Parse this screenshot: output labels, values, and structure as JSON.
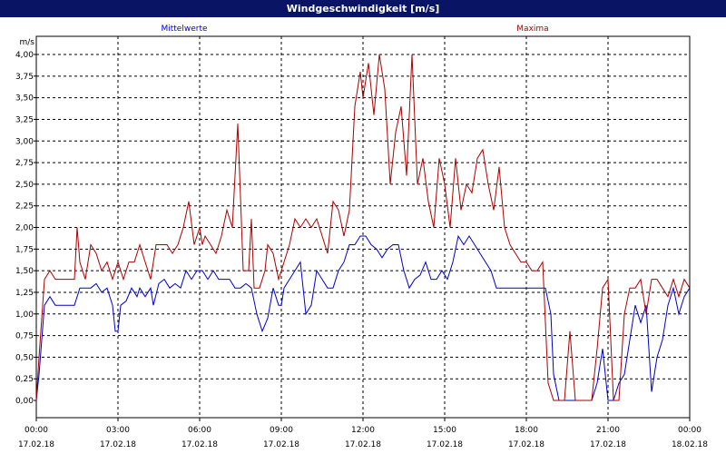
{
  "window": {
    "title": "Windgeschwindigkeit [m/s]"
  },
  "chart_data": {
    "type": "line",
    "title": "Windgeschwindigkeit [m/s]",
    "ylabel": "m/s",
    "xlabel": "",
    "ylim": [
      0,
      4
    ],
    "xlim": [
      0,
      24
    ],
    "grid": true,
    "legend_placement": "top",
    "x_ticks": [
      {
        "time": "00:00",
        "date": "17.02.18"
      },
      {
        "time": "03:00",
        "date": "17.02.18"
      },
      {
        "time": "06:00",
        "date": "17.02.18"
      },
      {
        "time": "09:00",
        "date": "17.02.18"
      },
      {
        "time": "12:00",
        "date": "17.02.18"
      },
      {
        "time": "15:00",
        "date": "17.02.18"
      },
      {
        "time": "18:00",
        "date": "17.02.18"
      },
      {
        "time": "21:00",
        "date": "17.02.18"
      },
      {
        "time": "00:00",
        "date": "18.02.18"
      }
    ],
    "y_ticks": [
      "0,00",
      "0,25",
      "0,50",
      "0,75",
      "1,00",
      "1,25",
      "1,50",
      "1,75",
      "2,00",
      "2,25",
      "2,50",
      "2,75",
      "3,00",
      "3,25",
      "3,50",
      "3,75",
      "4,00"
    ],
    "series": [
      {
        "name": "Mittelwerte",
        "color": "#0000cc",
        "x": [
          0.0,
          0.1,
          0.3,
          0.5,
          0.7,
          1.0,
          1.2,
          1.4,
          1.6,
          1.8,
          2.0,
          2.2,
          2.4,
          2.6,
          2.8,
          2.9,
          3.0,
          3.1,
          3.3,
          3.5,
          3.7,
          3.8,
          4.0,
          4.2,
          4.3,
          4.5,
          4.7,
          4.9,
          5.1,
          5.3,
          5.5,
          5.7,
          5.9,
          6.1,
          6.3,
          6.5,
          6.7,
          6.9,
          7.1,
          7.3,
          7.5,
          7.7,
          7.9,
          8.1,
          8.3,
          8.5,
          8.7,
          8.8,
          8.9,
          9.0,
          9.1,
          9.3,
          9.5,
          9.7,
          9.9,
          10.1,
          10.3,
          10.5,
          10.7,
          10.9,
          11.1,
          11.3,
          11.5,
          11.7,
          11.9,
          12.1,
          12.3,
          12.5,
          12.7,
          12.9,
          13.1,
          13.3,
          13.5,
          13.7,
          13.9,
          14.1,
          14.3,
          14.5,
          14.7,
          14.9,
          15.1,
          15.3,
          15.5,
          15.7,
          15.9,
          16.1,
          16.3,
          16.5,
          16.7,
          16.9,
          17.1,
          17.3,
          17.5,
          17.7,
          17.9,
          18.1,
          18.3,
          18.5,
          18.7,
          18.9,
          19.0,
          19.2,
          19.4,
          19.6,
          19.8,
          20.0,
          20.2,
          20.4,
          20.6,
          20.8,
          21.0,
          21.2,
          21.4,
          21.6,
          21.8,
          22.0,
          22.2,
          22.4,
          22.6,
          22.8,
          23.0,
          23.2,
          23.4,
          23.6,
          23.8,
          24.0
        ],
        "values": [
          0.0,
          0.3,
          1.1,
          1.2,
          1.1,
          1.1,
          1.1,
          1.1,
          1.3,
          1.3,
          1.3,
          1.35,
          1.25,
          1.3,
          1.1,
          0.8,
          0.8,
          1.1,
          1.15,
          1.3,
          1.2,
          1.3,
          1.2,
          1.3,
          1.1,
          1.35,
          1.4,
          1.3,
          1.35,
          1.3,
          1.5,
          1.4,
          1.5,
          1.5,
          1.4,
          1.5,
          1.4,
          1.4,
          1.4,
          1.3,
          1.3,
          1.35,
          1.3,
          1.0,
          0.8,
          0.95,
          1.3,
          1.2,
          1.1,
          1.1,
          1.3,
          1.4,
          1.5,
          1.6,
          1.0,
          1.1,
          1.5,
          1.4,
          1.3,
          1.3,
          1.5,
          1.6,
          1.8,
          1.8,
          1.9,
          1.9,
          1.8,
          1.75,
          1.65,
          1.75,
          1.8,
          1.8,
          1.5,
          1.3,
          1.4,
          1.45,
          1.6,
          1.4,
          1.4,
          1.5,
          1.4,
          1.6,
          1.9,
          1.8,
          1.9,
          1.8,
          1.7,
          1.6,
          1.5,
          1.3,
          1.3,
          1.3,
          1.3,
          1.3,
          1.3,
          1.3,
          1.3,
          1.3,
          1.3,
          1.0,
          0.3,
          0.0,
          0.0,
          0.0,
          0.0,
          0.0,
          0.0,
          0.0,
          0.2,
          0.6,
          0.0,
          0.0,
          0.2,
          0.3,
          0.7,
          1.1,
          0.9,
          1.1,
          0.1,
          0.5,
          0.7,
          1.1,
          1.3,
          1.0,
          1.2,
          1.3
        ]
      },
      {
        "name": "Maxima",
        "color": "#aa0000",
        "x": [
          0.0,
          0.1,
          0.3,
          0.5,
          0.7,
          1.0,
          1.2,
          1.4,
          1.5,
          1.6,
          1.8,
          2.0,
          2.2,
          2.4,
          2.6,
          2.8,
          3.0,
          3.2,
          3.4,
          3.6,
          3.8,
          4.0,
          4.2,
          4.4,
          4.6,
          4.8,
          5.0,
          5.2,
          5.4,
          5.6,
          5.8,
          6.0,
          6.1,
          6.2,
          6.4,
          6.6,
          6.8,
          7.0,
          7.2,
          7.4,
          7.6,
          7.8,
          7.9,
          8.0,
          8.2,
          8.4,
          8.5,
          8.7,
          8.9,
          9.1,
          9.3,
          9.5,
          9.7,
          9.9,
          10.1,
          10.3,
          10.5,
          10.7,
          10.9,
          11.1,
          11.3,
          11.5,
          11.7,
          11.9,
          12.0,
          12.2,
          12.4,
          12.6,
          12.8,
          13.0,
          13.2,
          13.4,
          13.6,
          13.8,
          14.0,
          14.2,
          14.4,
          14.6,
          14.8,
          15.0,
          15.2,
          15.4,
          15.6,
          15.8,
          16.0,
          16.2,
          16.4,
          16.6,
          16.8,
          17.0,
          17.2,
          17.4,
          17.6,
          17.8,
          18.0,
          18.2,
          18.4,
          18.6,
          18.8,
          19.0,
          19.2,
          19.4,
          19.6,
          19.8,
          20.0,
          20.2,
          20.4,
          20.6,
          20.8,
          21.0,
          21.2,
          21.4,
          21.6,
          21.8,
          22.0,
          22.2,
          22.4,
          22.6,
          22.8,
          23.0,
          23.2,
          23.4,
          23.6,
          23.8,
          24.0
        ],
        "values": [
          0.0,
          0.5,
          1.4,
          1.5,
          1.4,
          1.4,
          1.4,
          1.4,
          2.0,
          1.6,
          1.4,
          1.8,
          1.7,
          1.5,
          1.6,
          1.4,
          1.6,
          1.4,
          1.6,
          1.6,
          1.8,
          1.6,
          1.4,
          1.8,
          1.8,
          1.8,
          1.7,
          1.8,
          2.0,
          2.3,
          1.8,
          2.0,
          1.8,
          1.9,
          1.8,
          1.7,
          1.9,
          2.2,
          2.0,
          3.2,
          1.5,
          1.5,
          2.1,
          1.3,
          1.3,
          1.5,
          1.8,
          1.7,
          1.4,
          1.6,
          1.8,
          2.1,
          2.0,
          2.1,
          2.0,
          2.1,
          1.9,
          1.7,
          2.3,
          2.2,
          1.9,
          2.2,
          3.4,
          3.8,
          3.5,
          3.9,
          3.3,
          4.0,
          3.6,
          2.5,
          3.1,
          3.4,
          2.6,
          4.0,
          2.5,
          2.8,
          2.3,
          2.0,
          2.8,
          2.5,
          2.0,
          2.8,
          2.2,
          2.5,
          2.4,
          2.8,
          2.9,
          2.5,
          2.2,
          2.7,
          2.0,
          1.8,
          1.7,
          1.6,
          1.6,
          1.5,
          1.5,
          1.6,
          0.2,
          0.0,
          0.0,
          0.0,
          0.8,
          0.0,
          0.0,
          0.0,
          0.0,
          0.6,
          1.3,
          1.4,
          0.0,
          0.0,
          1.0,
          1.3,
          1.3,
          1.4,
          1.0,
          1.4,
          1.4,
          1.3,
          1.2,
          1.4,
          1.2,
          1.4,
          1.3
        ]
      }
    ]
  }
}
